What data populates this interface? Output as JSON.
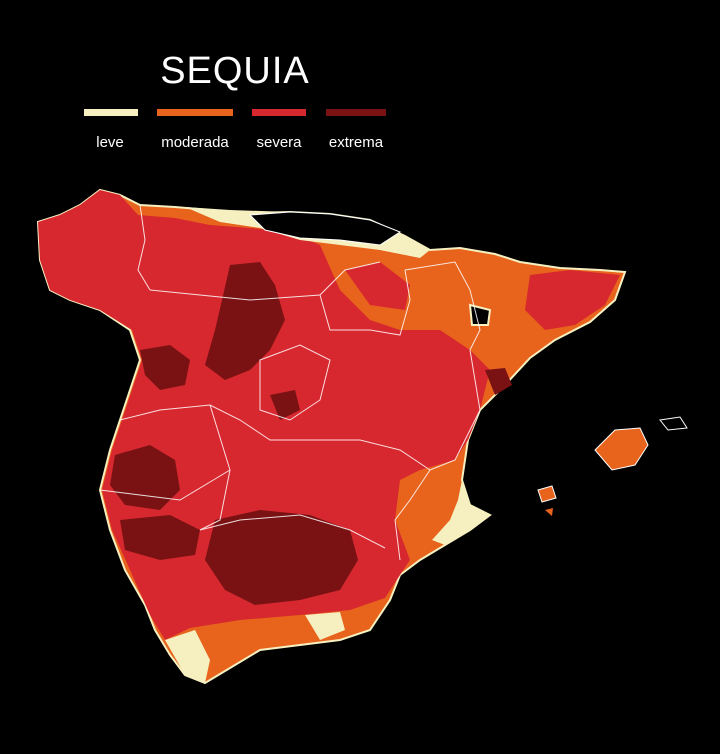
{
  "title": "SEQUIA",
  "legend": [
    {
      "label": "leve",
      "color": "#f6f0c0"
    },
    {
      "label": "moderada",
      "color": "#e8631c"
    },
    {
      "label": "severa",
      "color": "#d7282f"
    },
    {
      "label": "extrema",
      "color": "#7a1214"
    }
  ],
  "colors": {
    "background": "#000000",
    "borders": "#ffffff"
  }
}
